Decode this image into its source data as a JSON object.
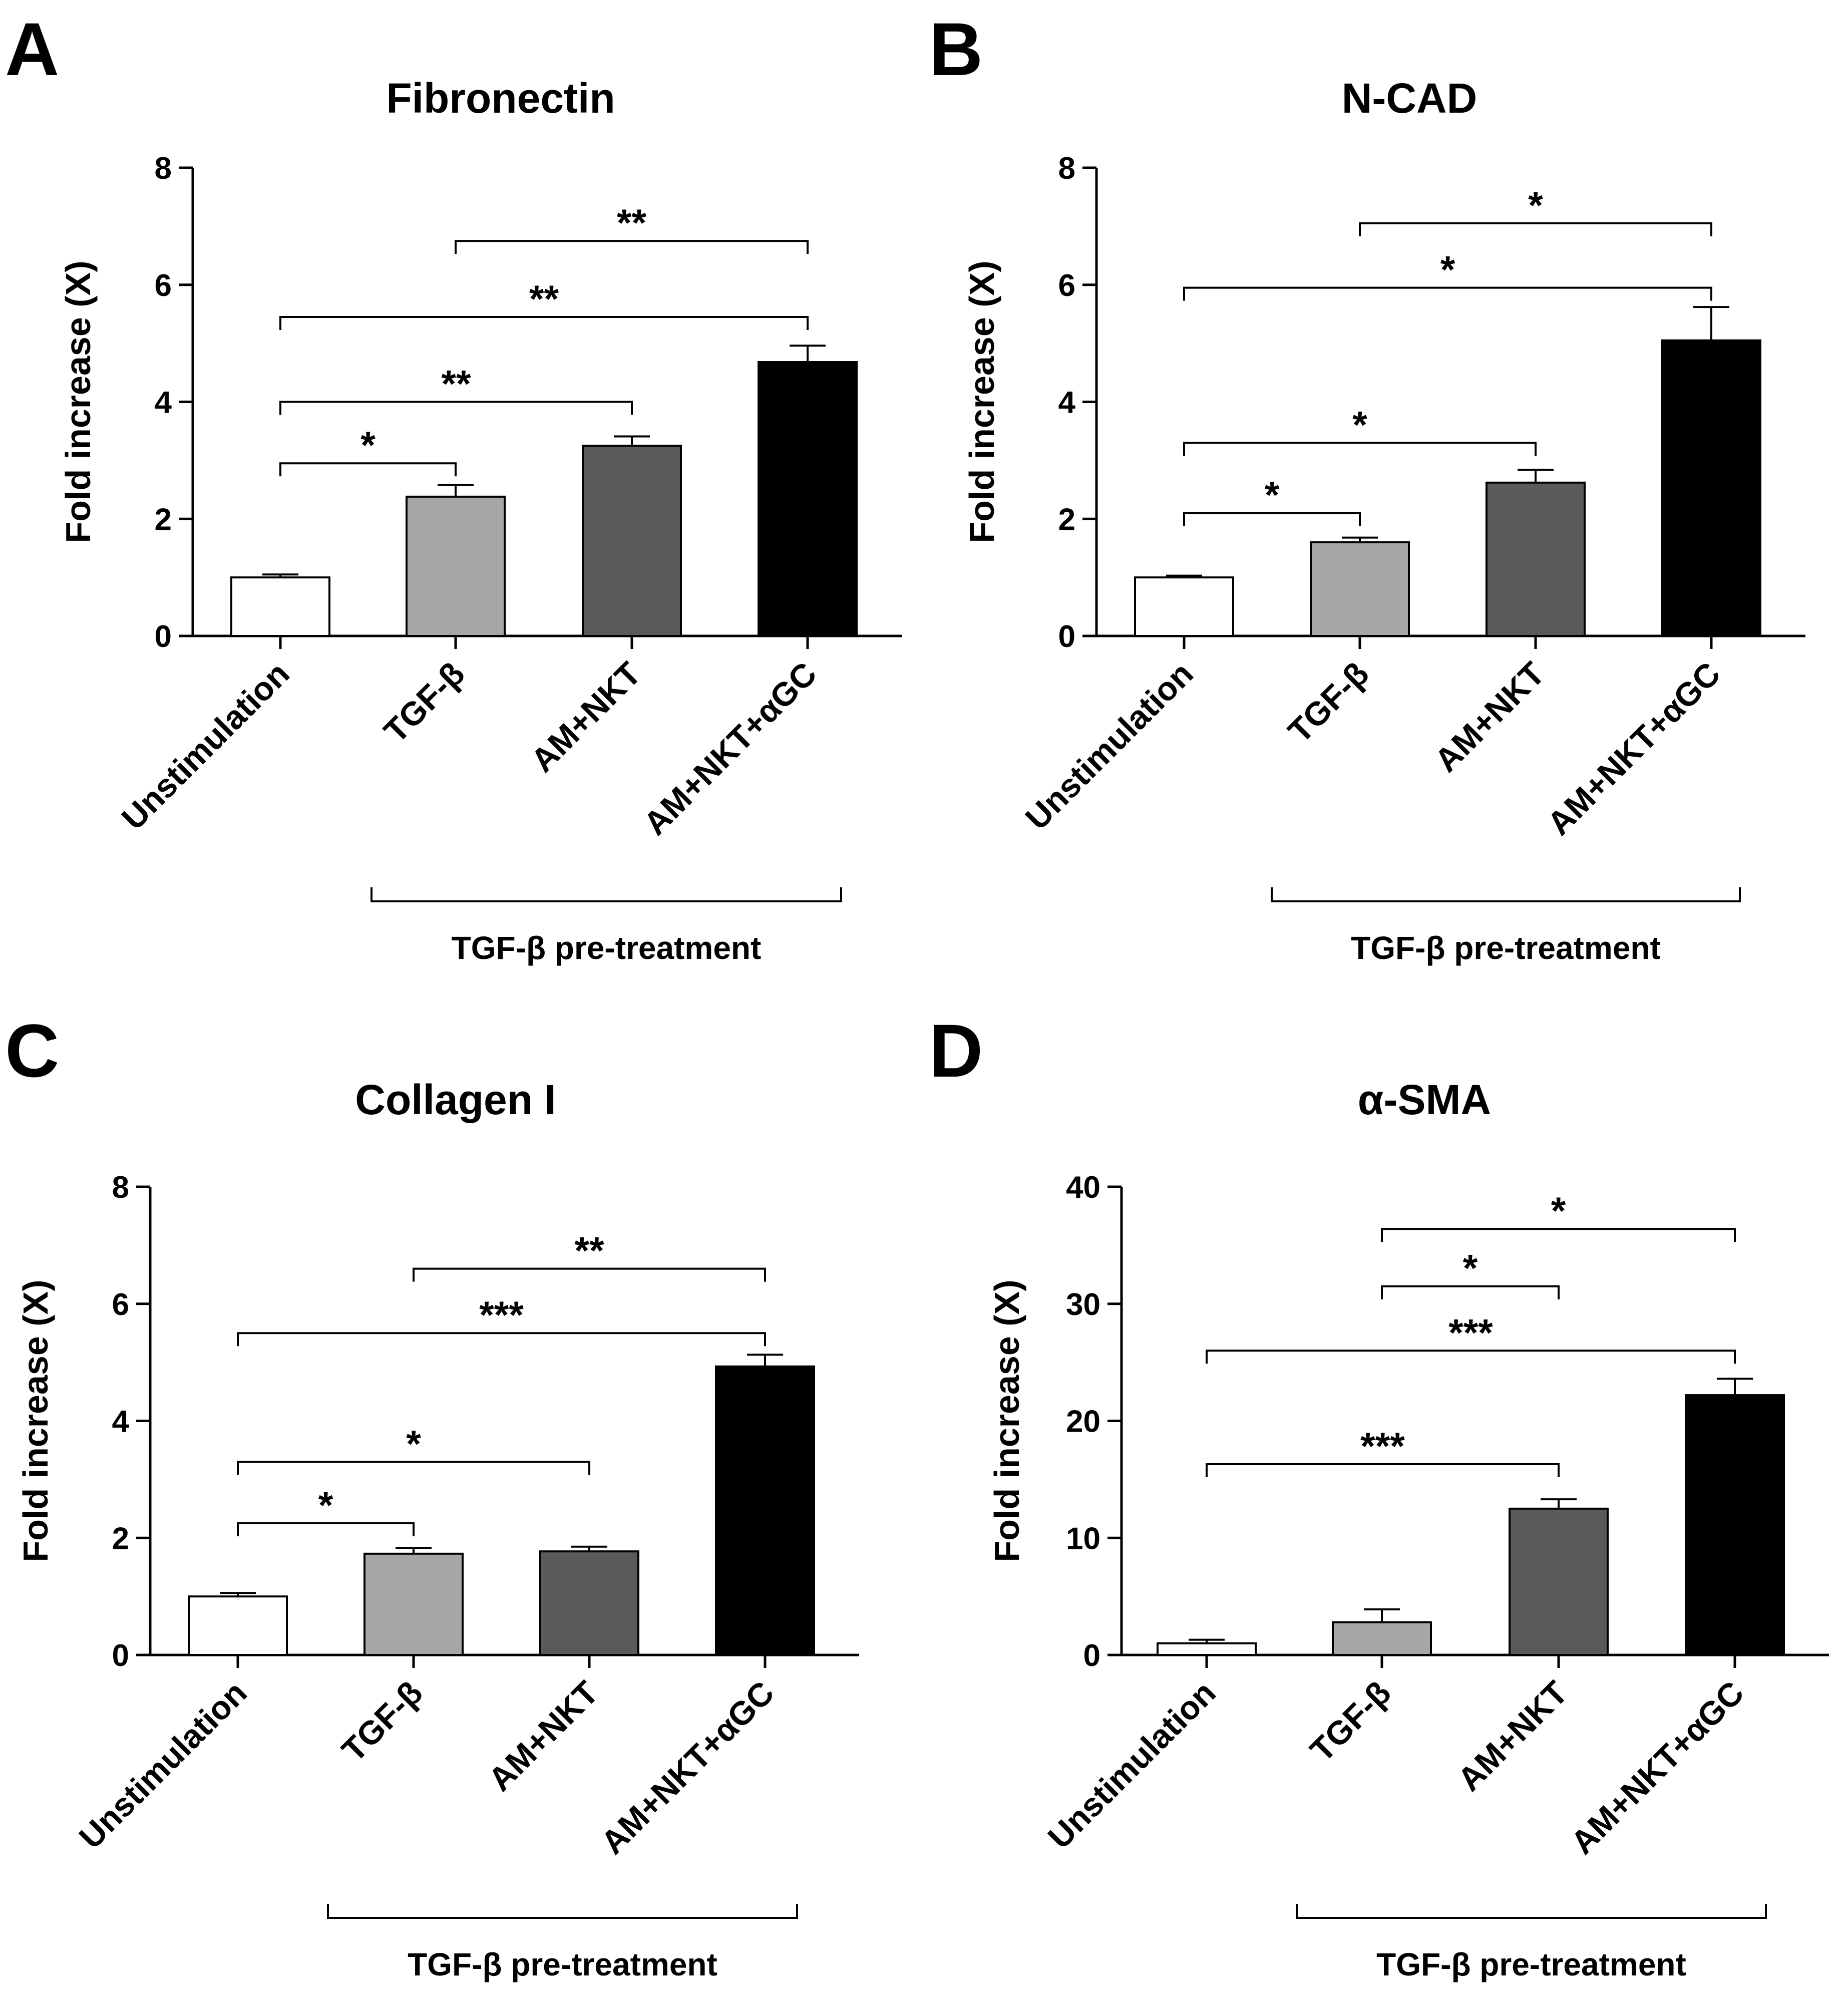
{
  "figure": {
    "panels": [
      "A",
      "B",
      "C",
      "D"
    ]
  },
  "chart_data": [
    {
      "panel": "A",
      "type": "bar",
      "title": "Fibronectin",
      "xlabel": "",
      "ylabel": "Fold increase (X)",
      "ylim": [
        0,
        8
      ],
      "yticks": [
        "0",
        "2",
        "4",
        "6",
        "8"
      ],
      "categories": [
        "Unstimulation",
        "TGF-β",
        "AM+NKT",
        "AM+NKT+αGC"
      ],
      "values": [
        1.0,
        2.38,
        3.25,
        4.68
      ],
      "errors": [
        0.05,
        0.2,
        0.16,
        0.28
      ],
      "bar_colors": [
        "#ffffff",
        "#a6a6a6",
        "#5a5a5a",
        "#000000"
      ],
      "group_label": "TGF-β pre-treatment",
      "group_span": [
        1,
        3
      ],
      "significance": [
        {
          "from": 0,
          "to": 1,
          "label": "*",
          "y": 2.95
        },
        {
          "from": 0,
          "to": 2,
          "label": "**",
          "y": 4.0
        },
        {
          "from": 0,
          "to": 3,
          "label": "**",
          "y": 5.45
        },
        {
          "from": 1,
          "to": 3,
          "label": "**",
          "y": 6.75
        }
      ]
    },
    {
      "panel": "B",
      "type": "bar",
      "title": "N-CAD",
      "xlabel": "",
      "ylabel": "Fold increase (X)",
      "ylim": [
        0,
        8
      ],
      "yticks": [
        "0",
        "2",
        "4",
        "6",
        "8"
      ],
      "categories": [
        "Unstimulation",
        "TGF-β",
        "AM+NKT",
        "AM+NKT+αGC"
      ],
      "values": [
        1.0,
        1.6,
        2.62,
        5.05
      ],
      "errors": [
        0.03,
        0.08,
        0.22,
        0.57
      ],
      "bar_colors": [
        "#ffffff",
        "#a6a6a6",
        "#5a5a5a",
        "#000000"
      ],
      "group_label": "TGF-β pre-treatment",
      "group_span": [
        1,
        3
      ],
      "significance": [
        {
          "from": 0,
          "to": 1,
          "label": "*",
          "y": 2.1
        },
        {
          "from": 0,
          "to": 2,
          "label": "*",
          "y": 3.3
        },
        {
          "from": 0,
          "to": 3,
          "label": "*",
          "y": 5.95
        },
        {
          "from": 1,
          "to": 3,
          "label": "*",
          "y": 7.05
        }
      ]
    },
    {
      "panel": "C",
      "type": "bar",
      "title": "Collagen I",
      "xlabel": "",
      "ylabel": "Fold increase (X)",
      "ylim": [
        0,
        8
      ],
      "yticks": [
        "0",
        "2",
        "4",
        "6",
        "8"
      ],
      "categories": [
        "Unstimulation",
        "TGF-β",
        "AM+NKT",
        "AM+NKT+αGC"
      ],
      "values": [
        1.0,
        1.73,
        1.77,
        4.93
      ],
      "errors": [
        0.06,
        0.1,
        0.08,
        0.2
      ],
      "bar_colors": [
        "#ffffff",
        "#a6a6a6",
        "#5a5a5a",
        "#000000"
      ],
      "group_label": "TGF-β pre-treatment",
      "group_span": [
        1,
        3
      ],
      "significance": [
        {
          "from": 0,
          "to": 1,
          "label": "*",
          "y": 2.25
        },
        {
          "from": 0,
          "to": 2,
          "label": "*",
          "y": 3.3
        },
        {
          "from": 0,
          "to": 3,
          "label": "***",
          "y": 5.5
        },
        {
          "from": 1,
          "to": 3,
          "label": "**",
          "y": 6.6
        }
      ]
    },
    {
      "panel": "D",
      "type": "bar",
      "title": "α-SMA",
      "xlabel": "",
      "ylabel": "Fold increase (X)",
      "ylim": [
        0,
        40
      ],
      "yticks": [
        "0",
        "10",
        "20",
        "30",
        "40"
      ],
      "categories": [
        "Unstimulation",
        "TGF-β",
        "AM+NKT",
        "AM+NKT+αGC"
      ],
      "values": [
        1.0,
        2.8,
        12.5,
        22.2
      ],
      "errors": [
        0.3,
        1.1,
        0.8,
        1.4
      ],
      "bar_colors": [
        "#ffffff",
        "#a6a6a6",
        "#5a5a5a",
        "#000000"
      ],
      "group_label": "TGF-β pre-treatment",
      "group_span": [
        1,
        3
      ],
      "significance": [
        {
          "from": 0,
          "to": 2,
          "label": "***",
          "y": 16.3
        },
        {
          "from": 0,
          "to": 3,
          "label": "***",
          "y": 26.0
        },
        {
          "from": 1,
          "to": 2,
          "label": "*",
          "y": 31.5
        },
        {
          "from": 1,
          "to": 3,
          "label": "*",
          "y": 36.4
        }
      ]
    }
  ]
}
